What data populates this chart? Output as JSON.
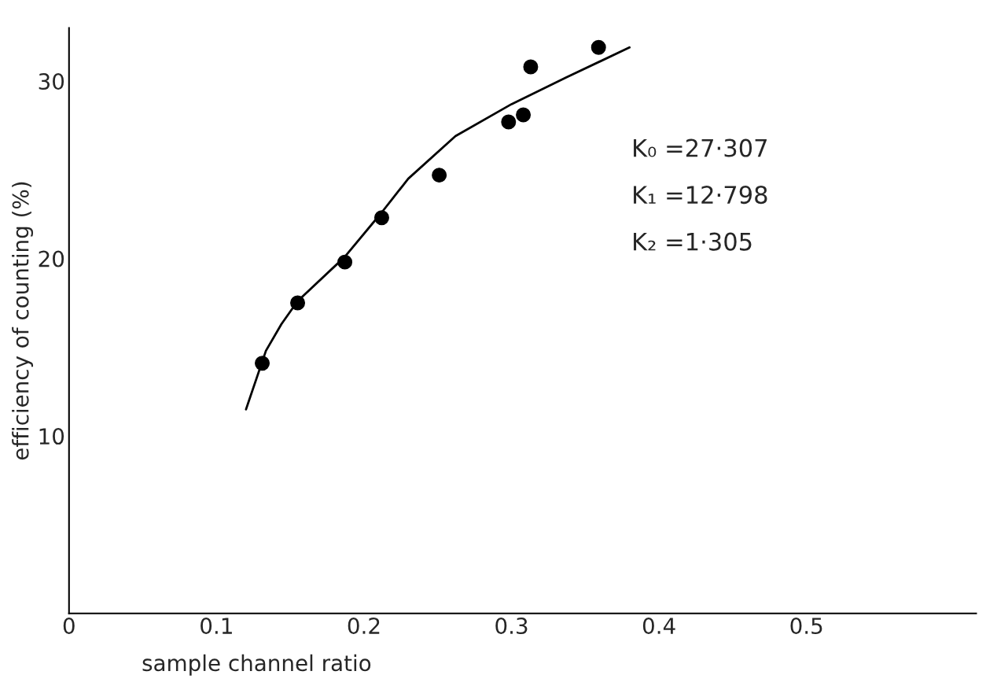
{
  "chart_data": {
    "type": "scatter",
    "xlabel": "sample channel ratio",
    "ylabel": "efficiency of counting (%)",
    "xlim": [
      0,
      0.615
    ],
    "ylim": [
      0,
      33
    ],
    "xticks": [
      0,
      0.1,
      0.2,
      0.3,
      0.4,
      0.5
    ],
    "yticks": [
      10,
      20,
      30
    ],
    "grid": false,
    "legend": false,
    "marker": "circle",
    "series": [
      {
        "color": "#000000",
        "x": [
          0.131,
          0.155,
          0.187,
          0.212,
          0.251,
          0.298,
          0.308,
          0.313,
          0.359
        ],
        "values": [
          14.1,
          17.5,
          19.8,
          22.3,
          24.7,
          27.7,
          28.1,
          30.8,
          31.9
        ]
      },
      {
        "type": "line",
        "color": "#000000",
        "line_style": "solid",
        "marker": "none",
        "x": [
          0.12,
          0.1335,
          0.144,
          0.155,
          0.187,
          0.212,
          0.23,
          0.262,
          0.3,
          0.337,
          0.38
        ],
        "values": [
          11.5,
          14.8,
          16.3,
          17.6,
          20.1,
          22.6,
          24.5,
          26.9,
          28.7,
          30.2,
          31.9
        ]
      }
    ],
    "annotations": [
      "K₀ =27·307",
      "K₁ =12·798",
      "K₂ =1·305"
    ]
  }
}
